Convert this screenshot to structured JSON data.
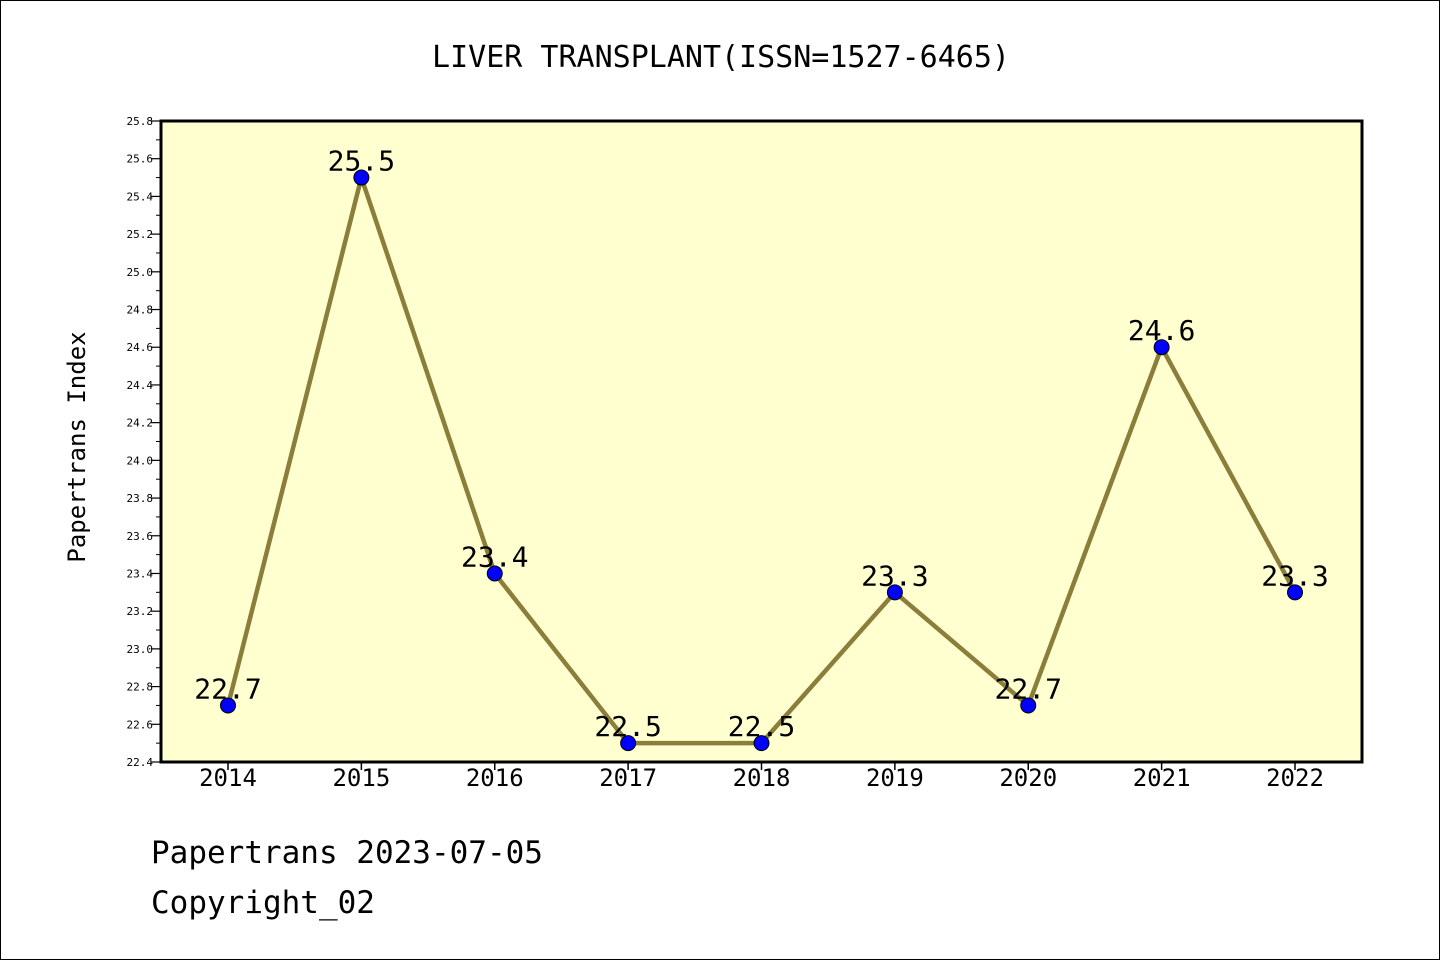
{
  "chart_data": {
    "type": "line",
    "title": "LIVER TRANSPLANT(ISSN=1527-6465)",
    "xlabel": "",
    "ylabel": "Papertrans Index",
    "categories": [
      "2014",
      "2015",
      "2016",
      "2017",
      "2018",
      "2019",
      "2020",
      "2021",
      "2022"
    ],
    "values": [
      22.7,
      25.5,
      23.4,
      22.5,
      22.5,
      23.3,
      22.7,
      24.6,
      23.3
    ],
    "data_labels": [
      "22.7",
      "25.5",
      "23.4",
      "22.5",
      "22.5",
      "23.3",
      "22.7",
      "24.6",
      "23.3"
    ],
    "ylim": [
      22.4,
      25.8
    ],
    "yticks": [
      "22.4",
      "22.6",
      "22.8",
      "23.0",
      "23.2",
      "23.4",
      "23.6",
      "23.8",
      "24.0",
      "24.2",
      "24.4",
      "24.6",
      "24.8",
      "25.0",
      "25.2",
      "25.4",
      "25.6",
      "25.8"
    ],
    "grid": false,
    "colors": {
      "plot_bg": "#ffffd0",
      "line": "#8b7d3a",
      "marker": "#0000ff",
      "axis": "#000000"
    }
  },
  "footer": {
    "line1": "Papertrans 2023-07-05",
    "line2": "Copyright_02"
  }
}
